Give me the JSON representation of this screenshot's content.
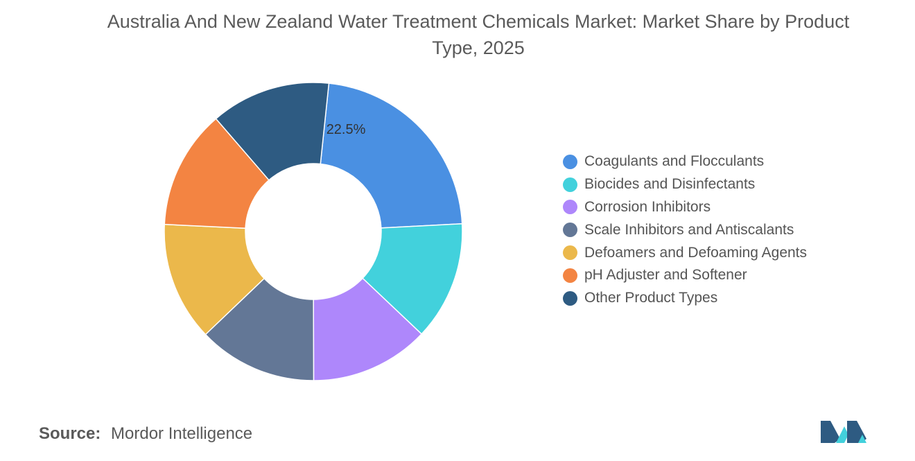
{
  "chart_data": {
    "type": "pie",
    "title": "Australia And New Zealand Water Treatment Chemicals Market: Market Share by Product Type, 2025",
    "donut": true,
    "legend_position": "right",
    "slices": [
      {
        "label": "Coagulants and Flocculants",
        "value": 22.5,
        "data_label": "22.5%",
        "color": "#4a90e2"
      },
      {
        "label": "Biocides and Disinfectants",
        "value": 12.9,
        "color": "#42d1dc"
      },
      {
        "label": "Corrosion Inhibitors",
        "value": 12.9,
        "color": "#ae87fb"
      },
      {
        "label": "Scale Inhibitors and Antiscalants",
        "value": 12.9,
        "color": "#637796"
      },
      {
        "label": "Defoamers and Defoaming Agents",
        "value": 12.9,
        "color": "#ebb84b"
      },
      {
        "label": "pH Adjuster and Softener",
        "value": 12.9,
        "color": "#f38442"
      },
      {
        "label": "Other Product Types",
        "value": 13.0,
        "color": "#2e5b82"
      }
    ]
  },
  "source": {
    "label": "Source:",
    "text": "Mordor Intelligence"
  },
  "logo": {
    "icon": "mordor-intelligence-logo-icon",
    "colors": [
      "#2e5b82",
      "#42d1dc"
    ]
  }
}
